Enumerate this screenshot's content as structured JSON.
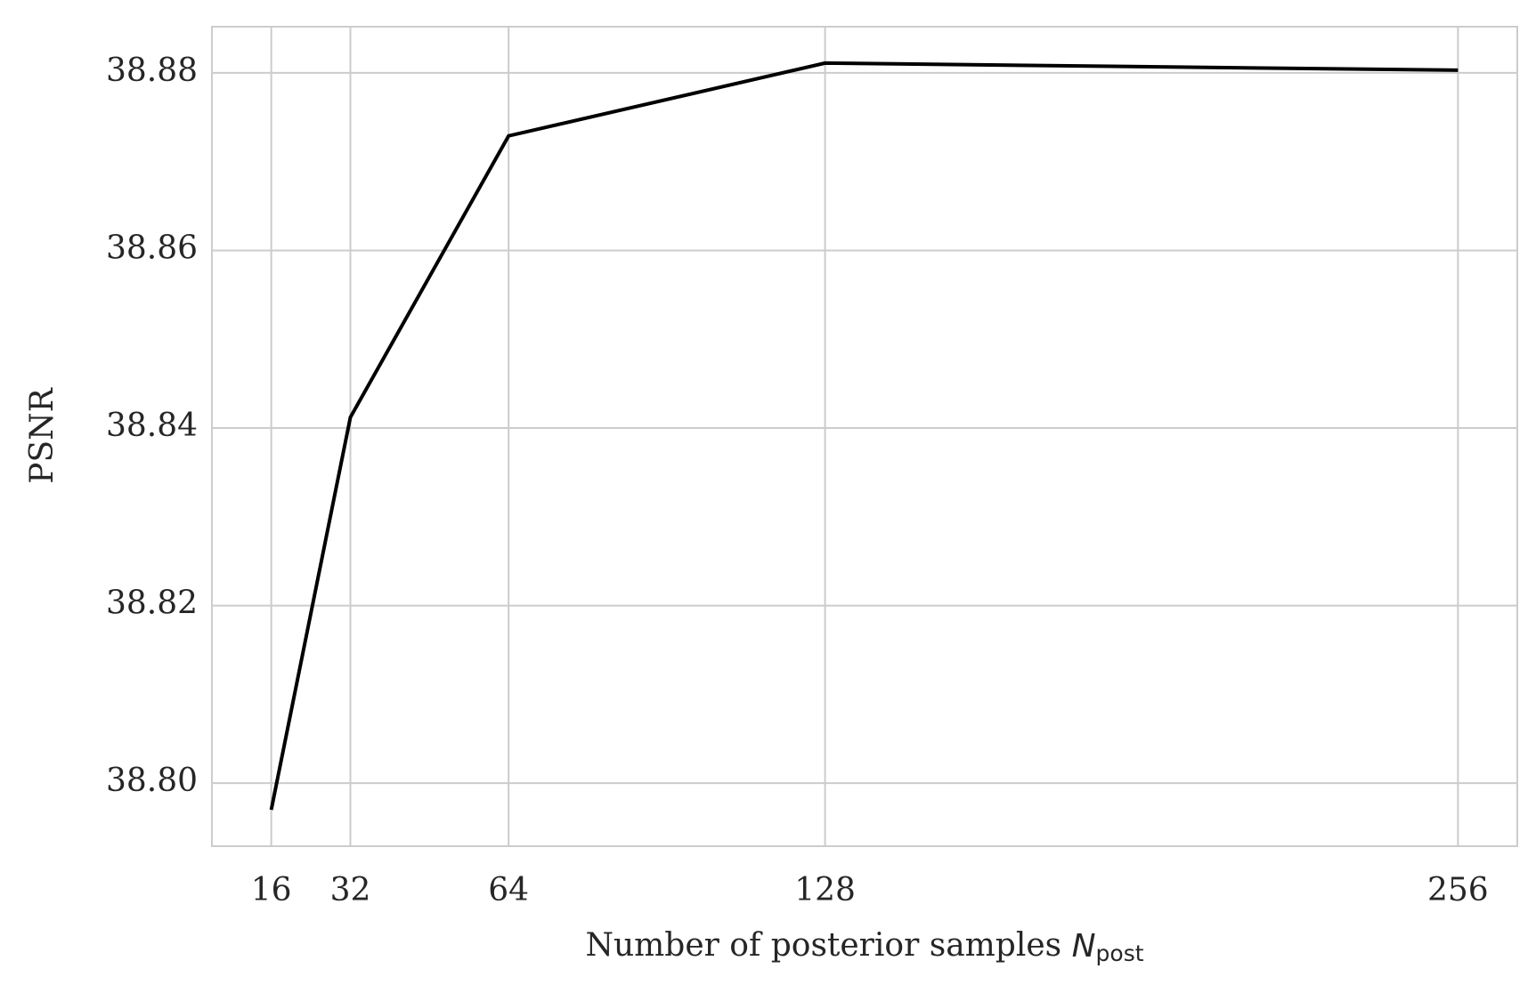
{
  "chart_data": {
    "type": "line",
    "xlabel": "Number of posterior samples",
    "xlabel_symbol": "N",
    "xlabel_subscript": "post",
    "ylabel": "PSNR",
    "x": [
      16,
      32,
      64,
      128,
      256
    ],
    "series": [
      {
        "color": "#000000",
        "values": [
          38.797,
          38.8412,
          38.8729,
          38.8811,
          38.8803
        ]
      }
    ],
    "xlim": [
      4,
      268
    ],
    "xticks": [
      16,
      32,
      64,
      128,
      256
    ],
    "ylim": [
      38.7929,
      38.8852
    ],
    "yticks": [
      {
        "value": 38.8,
        "label": "38.80"
      },
      {
        "value": 38.82,
        "label": "38.82"
      },
      {
        "value": 38.84,
        "label": "38.84"
      },
      {
        "value": 38.86,
        "label": "38.86"
      },
      {
        "value": 38.88,
        "label": "38.88"
      }
    ],
    "grid": true
  }
}
